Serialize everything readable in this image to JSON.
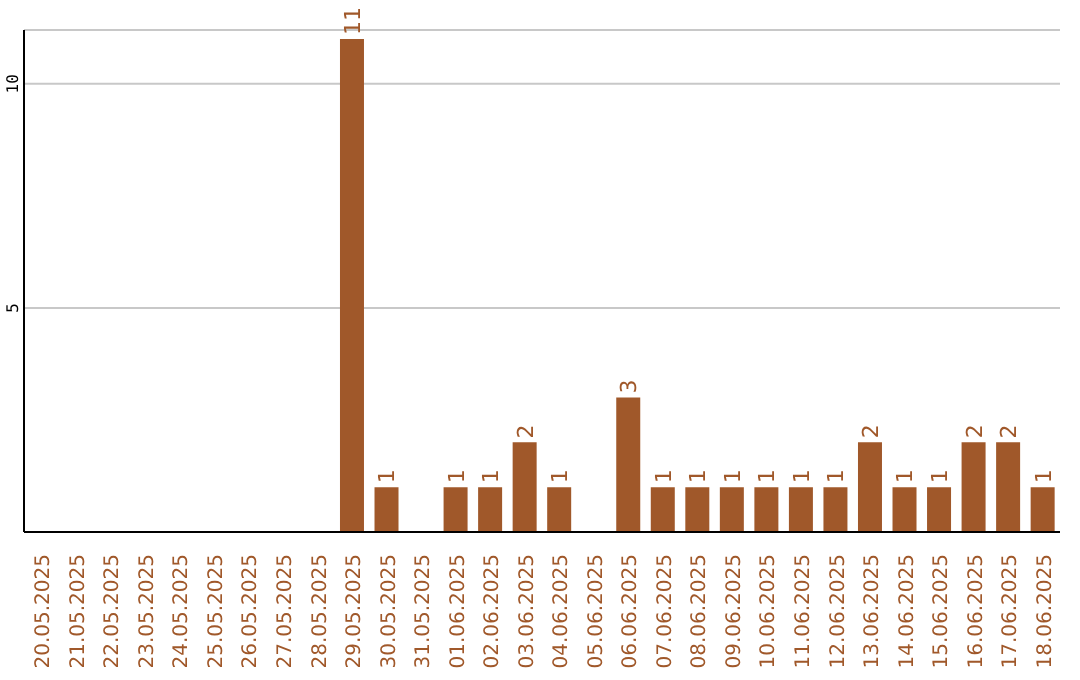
{
  "chart_data": {
    "type": "bar",
    "categories": [
      "20.05.2025",
      "21.05.2025",
      "22.05.2025",
      "23.05.2025",
      "24.05.2025",
      "25.05.2025",
      "26.05.2025",
      "27.05.2025",
      "28.05.2025",
      "29.05.2025",
      "30.05.2025",
      "31.05.2025",
      "01.06.2025",
      "02.06.2025",
      "03.06.2025",
      "04.06.2025",
      "05.06.2025",
      "06.06.2025",
      "07.06.2025",
      "08.06.2025",
      "09.06.2025",
      "10.06.2025",
      "11.06.2025",
      "12.06.2025",
      "13.06.2025",
      "14.06.2025",
      "15.06.2025",
      "16.06.2025",
      "17.06.2025",
      "18.06.2025"
    ],
    "values": [
      0,
      0,
      0,
      0,
      0,
      0,
      0,
      0,
      0,
      11,
      1,
      0,
      1,
      1,
      2,
      1,
      0,
      3,
      1,
      1,
      1,
      1,
      1,
      1,
      2,
      1,
      1,
      2,
      2,
      1
    ],
    "value_labels": [
      null,
      null,
      null,
      null,
      null,
      null,
      null,
      null,
      null,
      "11",
      "1",
      null,
      "1",
      "1",
      "2",
      "1",
      null,
      "3",
      "1",
      "1",
      "1",
      "1",
      "1",
      "1",
      "2",
      "1",
      "1",
      "2",
      "2",
      "1"
    ],
    "color": "#a0582a",
    "ylim": [
      0,
      11.2
    ],
    "yticks": [
      5,
      10
    ],
    "grid": "y"
  }
}
